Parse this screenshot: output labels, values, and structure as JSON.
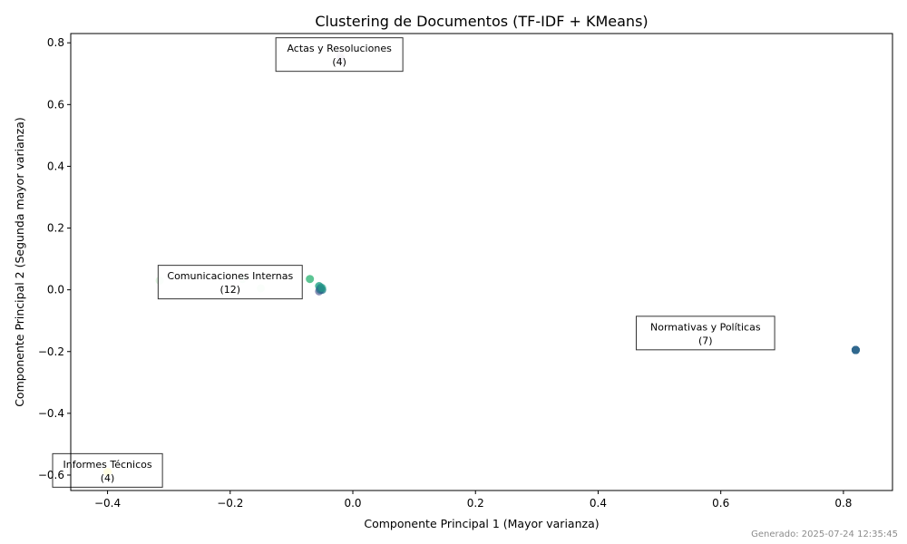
{
  "chart_data": {
    "type": "scatter",
    "title": "Clustering de Documentos (TF-IDF + KMeans)",
    "xlabel": "Componente Principal 1 (Mayor varianza)",
    "ylabel": "Componente Principal 2 (Segunda mayor varianza)",
    "xlim": [
      -0.46,
      0.88
    ],
    "ylim": [
      -0.65,
      0.83
    ],
    "xticks": [
      -0.4,
      -0.2,
      0.0,
      0.2,
      0.4,
      0.6,
      0.8
    ],
    "yticks": [
      -0.6,
      -0.4,
      -0.2,
      0.0,
      0.2,
      0.4,
      0.6,
      0.8
    ],
    "xtick_labels": [
      "−0.4",
      "−0.2",
      "0.0",
      "0.2",
      "0.4",
      "0.6",
      "0.8"
    ],
    "ytick_labels": [
      "−0.6",
      "−0.4",
      "−0.2",
      "0.0",
      "0.2",
      "0.4",
      "0.6",
      "0.8"
    ],
    "grid": false,
    "points": [
      {
        "x": -0.02,
        "y": 0.75,
        "color": "#9e8fb8",
        "alpha": 0.35
      },
      {
        "x": -0.02,
        "y": 0.75,
        "color": "#9e8fb8",
        "alpha": 0.35
      },
      {
        "x": -0.02,
        "y": 0.76,
        "color": "#9e8fb8",
        "alpha": 0.35
      },
      {
        "x": -0.02,
        "y": 0.74,
        "color": "#9e8fb8",
        "alpha": 0.35
      },
      {
        "x": -0.315,
        "y": 0.03,
        "color": "#5ec962",
        "alpha": 0.2
      },
      {
        "x": -0.18,
        "y": 0.035,
        "color": "#5ec962",
        "alpha": 0.2
      },
      {
        "x": -0.15,
        "y": 0.005,
        "color": "#5ec962",
        "alpha": 0.2
      },
      {
        "x": -0.07,
        "y": 0.035,
        "color": "#35b779",
        "alpha": 0.8
      },
      {
        "x": -0.055,
        "y": 0.012,
        "color": "#21a685",
        "alpha": 0.8
      },
      {
        "x": -0.052,
        "y": 0.005,
        "color": "#1f9e89",
        "alpha": 0.8
      },
      {
        "x": -0.05,
        "y": 0.0,
        "color": "#26828e",
        "alpha": 0.8
      },
      {
        "x": -0.055,
        "y": -0.005,
        "color": "#3e4a89",
        "alpha": 0.6
      },
      {
        "x": -0.053,
        "y": 0.0,
        "color": "#31688e",
        "alpha": 0.6
      },
      {
        "x": -0.052,
        "y": 0.008,
        "color": "#2a788e",
        "alpha": 0.5
      },
      {
        "x": -0.054,
        "y": 0.002,
        "color": "#2a788e",
        "alpha": 0.5
      },
      {
        "x": -0.05,
        "y": 0.006,
        "color": "#22a884",
        "alpha": 0.5
      },
      {
        "x": 0.82,
        "y": -0.195,
        "color": "#31688e",
        "alpha": 0.9
      },
      {
        "x": 0.82,
        "y": -0.195,
        "color": "#31688e",
        "alpha": 0.9
      },
      {
        "x": 0.82,
        "y": -0.195,
        "color": "#31688e",
        "alpha": 0.9
      },
      {
        "x": 0.82,
        "y": -0.195,
        "color": "#31688e",
        "alpha": 0.9
      },
      {
        "x": 0.82,
        "y": -0.195,
        "color": "#31688e",
        "alpha": 0.9
      },
      {
        "x": 0.82,
        "y": -0.195,
        "color": "#31688e",
        "alpha": 0.9
      },
      {
        "x": 0.82,
        "y": -0.195,
        "color": "#31688e",
        "alpha": 0.9
      },
      {
        "x": -0.4,
        "y": -0.59,
        "color": "#fde725",
        "alpha": 0.4
      },
      {
        "x": -0.4,
        "y": -0.59,
        "color": "#fde725",
        "alpha": 0.4
      },
      {
        "x": -0.4,
        "y": -0.59,
        "color": "#fde725",
        "alpha": 0.4
      },
      {
        "x": -0.4,
        "y": -0.59,
        "color": "#fde725",
        "alpha": 0.4
      }
    ],
    "annotations": [
      {
        "name": "Actas y Resoluciones",
        "count": "(4)",
        "x": -0.022,
        "y": 0.762
      },
      {
        "name": "Comunicaciones Internas",
        "count": "(12)",
        "x": -0.2,
        "y": 0.025
      },
      {
        "name": "Normativas y Políticas",
        "count": "(7)",
        "x": 0.575,
        "y": -0.14
      },
      {
        "name": "Informes Técnicos",
        "count": "(4)",
        "x": -0.4,
        "y": -0.585
      }
    ]
  },
  "footer": {
    "generated": "Generado: 2025-07-24 12:35:45"
  }
}
